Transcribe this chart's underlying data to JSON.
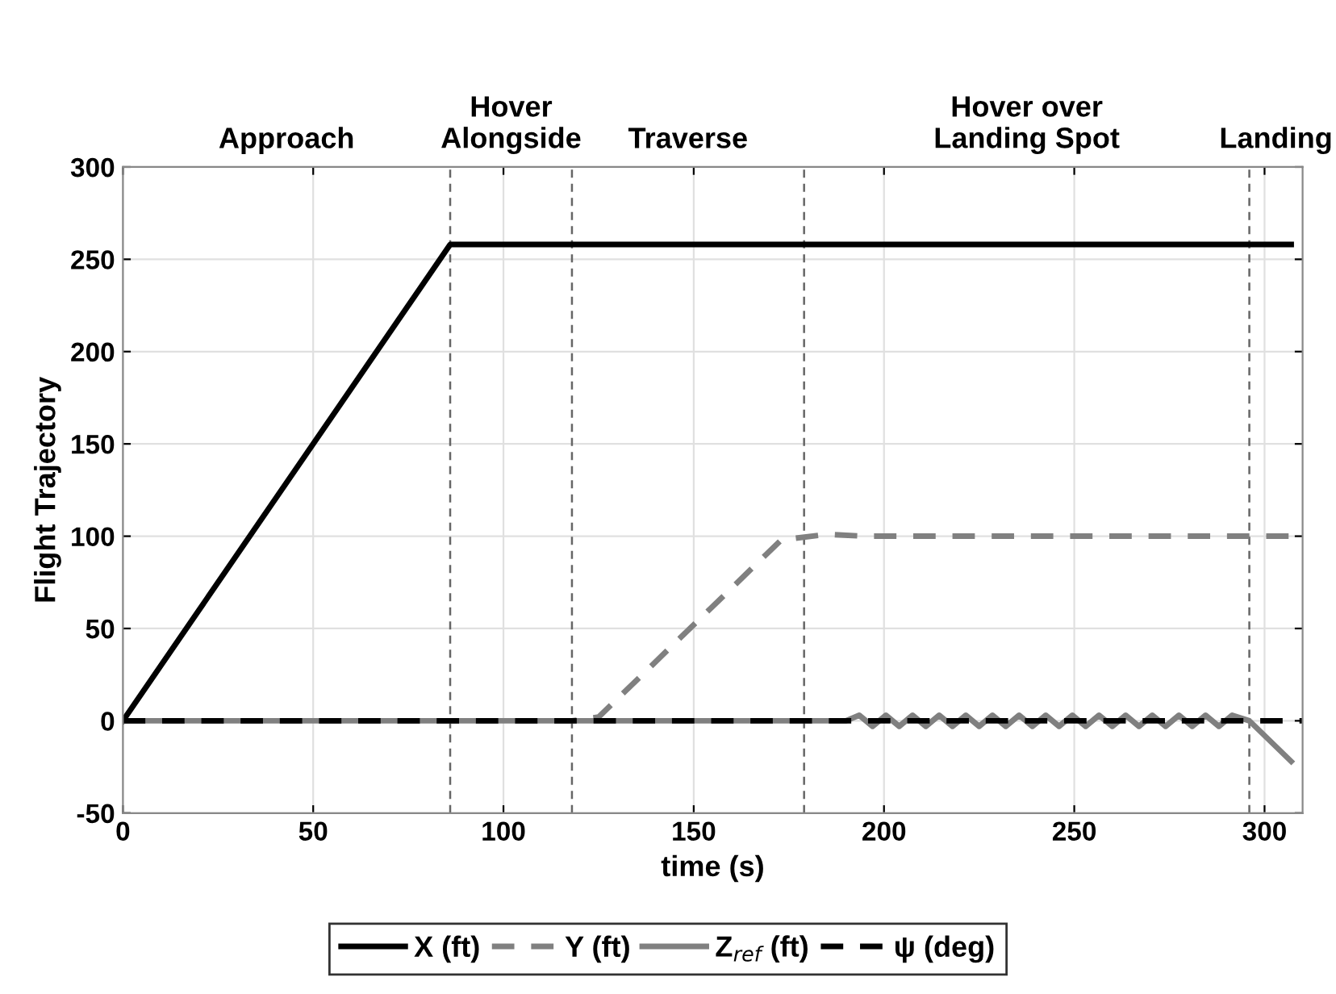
{
  "chart_data": {
    "type": "line",
    "xlabel": "time (s)",
    "ylabel": "Flight Trajectory",
    "xlim": [
      0,
      310
    ],
    "ylim": [
      -50,
      300
    ],
    "xticks": [
      0,
      50,
      100,
      150,
      200,
      250,
      300
    ],
    "yticks": [
      -50,
      0,
      50,
      100,
      150,
      200,
      250,
      300
    ],
    "grid": true,
    "legend": "bottom",
    "marker": "none",
    "series": [
      {
        "name": "X (ft)",
        "color": "#000000",
        "line_style": "solid",
        "x": [
          0,
          86,
          307
        ],
        "values": [
          0,
          258,
          258
        ]
      },
      {
        "name": "Y (ft)",
        "color": "#808080",
        "line_style": "dashed",
        "x": [
          0,
          118,
          125,
          173,
          185,
          195,
          307
        ],
        "values": [
          0,
          0,
          2,
          98,
          101,
          100,
          100
        ]
      },
      {
        "name": "Z$_{ref}$ (ft)",
        "color": "#808080",
        "line_style": "solid",
        "x": [
          0,
          185,
          190,
          193.5,
          197,
          200.5,
          204,
          207.5,
          211,
          214.5,
          218,
          221.5,
          225,
          228.5,
          232,
          235.5,
          239,
          242.5,
          246,
          249.5,
          253,
          256.5,
          260,
          263.5,
          267,
          270.5,
          274,
          277.5,
          281,
          284.5,
          288,
          291.5,
          296,
          307
        ],
        "values": [
          0,
          0,
          0,
          3,
          -3,
          3,
          -3,
          3,
          -3,
          3,
          -3,
          3,
          -3,
          3,
          -3,
          3,
          -3,
          3,
          -3,
          3,
          -3,
          3,
          -3,
          3,
          -3,
          3,
          -3,
          3,
          -3,
          3,
          -3,
          3,
          0,
          -22
        ]
      },
      {
        "name": "ψ (deg)",
        "color": "#000000",
        "line_style": "dashed",
        "x": [
          0,
          310
        ],
        "values": [
          0,
          0
        ]
      }
    ],
    "ref_lines": [
      {
        "axis": "x",
        "value": 86,
        "color": "#666666",
        "line_style": "dashed"
      },
      {
        "axis": "x",
        "value": 118,
        "color": "#666666",
        "line_style": "dashed"
      },
      {
        "axis": "x",
        "value": 179,
        "color": "#666666",
        "line_style": "dashed"
      },
      {
        "axis": "x",
        "value": 296,
        "color": "#666666",
        "line_style": "dashed"
      }
    ],
    "annotations": [
      "Approach",
      "Hover\nAlongside",
      "Traverse",
      "Hover over\nLanding Spot",
      "Landing"
    ]
  }
}
